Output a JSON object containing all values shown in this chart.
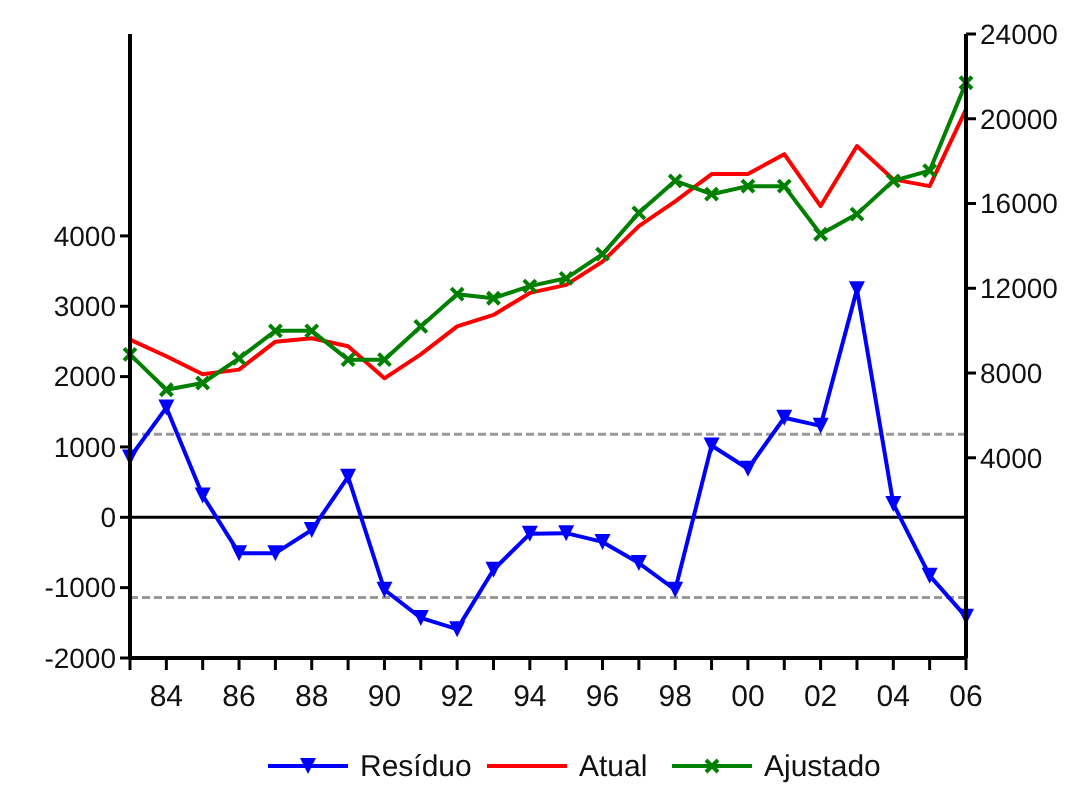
{
  "chart_data": {
    "type": "line",
    "x": [
      1983,
      1984,
      1985,
      1986,
      1987,
      1988,
      1989,
      1990,
      1991,
      1992,
      1993,
      1994,
      1995,
      1996,
      1997,
      1998,
      1999,
      2000,
      2001,
      2002,
      2003,
      2004,
      2005,
      2006
    ],
    "xlim": [
      1983,
      2006
    ],
    "xticks": [
      {
        "value": 1983,
        "label": null
      },
      {
        "value": 1984,
        "label": "84"
      },
      {
        "value": 1985,
        "label": null
      },
      {
        "value": 1986,
        "label": "86"
      },
      {
        "value": 1987,
        "label": null
      },
      {
        "value": 1988,
        "label": "88"
      },
      {
        "value": 1989,
        "label": null
      },
      {
        "value": 1990,
        "label": "90"
      },
      {
        "value": 1991,
        "label": null
      },
      {
        "value": 1992,
        "label": "92"
      },
      {
        "value": 1993,
        "label": null
      },
      {
        "value": 1994,
        "label": "94"
      },
      {
        "value": 1995,
        "label": null
      },
      {
        "value": 1996,
        "label": "96"
      },
      {
        "value": 1997,
        "label": null
      },
      {
        "value": 1998,
        "label": "98"
      },
      {
        "value": 1999,
        "label": null
      },
      {
        "value": 2000,
        "label": "00"
      },
      {
        "value": 2001,
        "label": null
      },
      {
        "value": 2002,
        "label": "02"
      },
      {
        "value": 2003,
        "label": null
      },
      {
        "value": 2004,
        "label": "04"
      },
      {
        "value": 2005,
        "label": null
      },
      {
        "value": 2006,
        "label": "06"
      }
    ],
    "ylim": [
      -2000,
      6870
    ],
    "yticks": [
      -2000,
      -1000,
      0,
      1000,
      2000,
      3000,
      4000
    ],
    "y2lim": [
      -5450,
      24000
    ],
    "y2ticks": [
      4000,
      8000,
      12000,
      16000,
      20000,
      24000
    ],
    "series": [
      {
        "name": "Resíduo",
        "color": "#0000ff",
        "marker": "triangle",
        "values": [
          850,
          1560,
          310,
          -510,
          -510,
          -180,
          575,
          -1030,
          -1430,
          -1590,
          -745,
          -235,
          -225,
          -350,
          -650,
          -1030,
          1020,
          690,
          1415,
          1300,
          3240,
          190,
          -830,
          -1415
        ]
      },
      {
        "name": "Atual",
        "color": "#ff0000",
        "axis": "y2",
        "marker": "none",
        "values": [
          9575,
          8790,
          7940,
          8160,
          9480,
          9640,
          9260,
          7750,
          8880,
          10200,
          10740,
          11780,
          12160,
          13260,
          14930,
          16100,
          17390,
          17390,
          18330,
          15880,
          18710,
          17140,
          16820,
          20440
        ]
      },
      {
        "name": "Ajustado",
        "color": "#008000",
        "axis": "y2",
        "marker": "cross",
        "values": [
          8880,
          7210,
          7530,
          8690,
          9990,
          9990,
          8630,
          8630,
          10200,
          11720,
          11530,
          12100,
          12470,
          13610,
          15560,
          17070,
          16440,
          16820,
          16820,
          14550,
          15500,
          17070,
          17550,
          21700
        ]
      }
    ],
    "ref_lines": [
      {
        "axis": "y",
        "value": 0,
        "color": "#000000",
        "line_style": "solid"
      },
      {
        "axis": "y",
        "value": 1180,
        "color": "#999999",
        "line_style": "dashed"
      },
      {
        "axis": "y",
        "value": -1140,
        "color": "#999999",
        "line_style": "dashed"
      }
    ],
    "grid": false,
    "legend": "bottom",
    "line_style": "solid"
  }
}
